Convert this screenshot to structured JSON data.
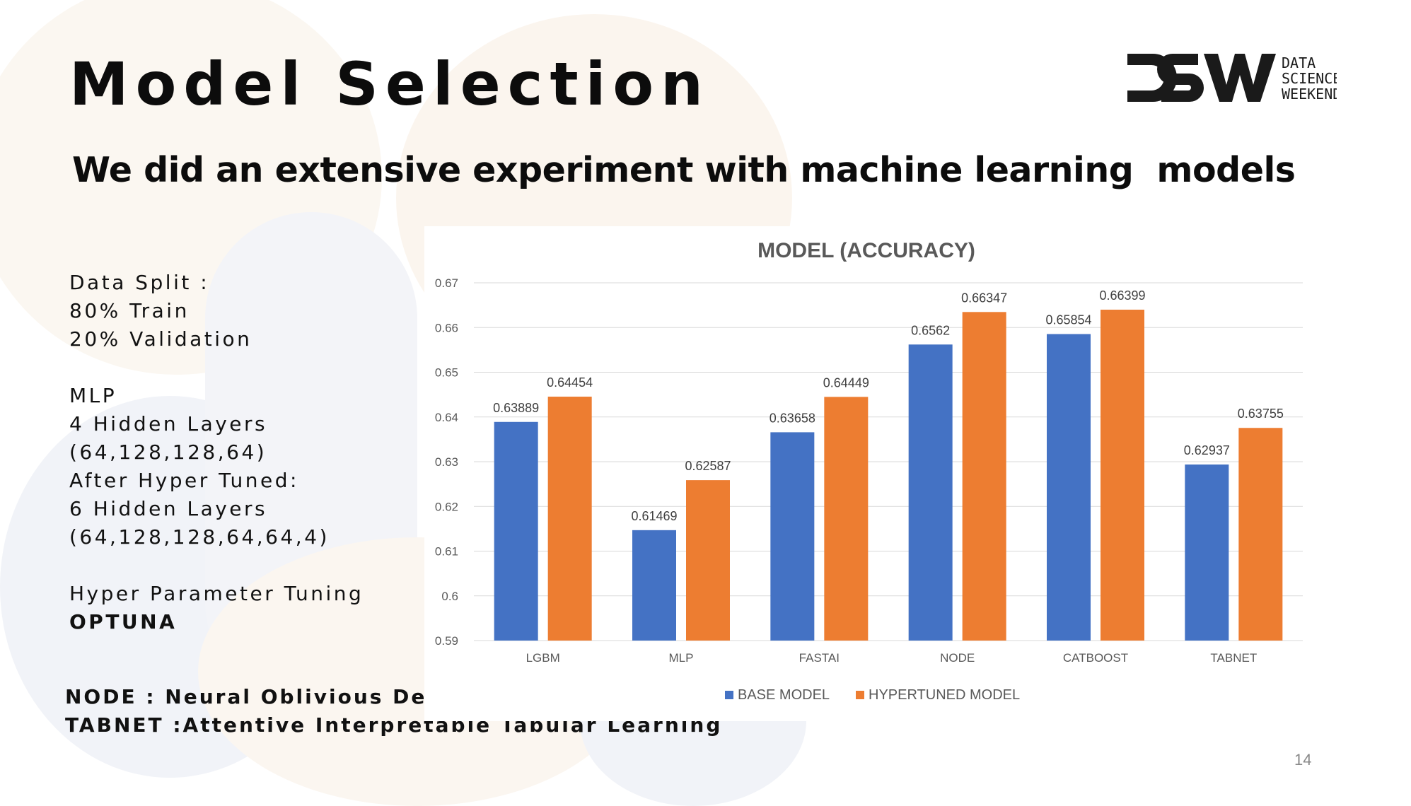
{
  "slide": {
    "title": "Model Selection",
    "subtitle": "We did an extensive experiment with machine learning  models",
    "page_number": "14"
  },
  "logo": {
    "mark": "DSW",
    "lines": [
      "DATA",
      "SCIENCE",
      "WEEKEND"
    ]
  },
  "notes": {
    "data_split_label": "Data Split :",
    "train": "80% Train",
    "validation": "20% Validation",
    "mlp_label": "MLP",
    "mlp_layers": "4  Hidden Layers",
    "mlp_shape": "(64,128,128,64)",
    "after_tuned": "After Hyper Tuned:",
    "tuned_layers": "6  Hidden Layers",
    "tuned_shape": "(64,128,128,64,64,4)",
    "hpt_label": "Hyper  Parameter Tuning",
    "hpt_tool": "OPTUNA"
  },
  "footnotes": {
    "node": "NODE : Neural  Oblivious  Decision Ensembles",
    "tabnet": "TABNET :Attentive  Interpretable  Tabular Learning"
  },
  "colors": {
    "base": "#4472c4",
    "hypertuned": "#ed7d31",
    "grid": "#d9d9d9",
    "axis_text": "#595959"
  },
  "chart_data": {
    "type": "bar",
    "title": "MODEL (ACCURACY)",
    "categories": [
      "LGBM",
      "MLP",
      "FASTAI",
      "NODE",
      "CATBOOST",
      "TABNET"
    ],
    "series": [
      {
        "name": "BASE MODEL",
        "values": [
          0.63889,
          0.61469,
          0.63658,
          0.6562,
          0.65854,
          0.62937
        ],
        "labels": [
          "0.63889",
          "0.61469",
          "0.63658",
          "0.6562",
          "0.65854",
          "0.62937"
        ]
      },
      {
        "name": "HYPERTUNED MODEL",
        "values": [
          0.64454,
          0.62587,
          0.64449,
          0.66347,
          0.66399,
          0.63755
        ],
        "labels": [
          "0.64454",
          "0.62587",
          "0.64449",
          "0.66347",
          "0.66399",
          "0.63755"
        ]
      }
    ],
    "yticks": [
      "0.59",
      "0.6",
      "0.61",
      "0.62",
      "0.63",
      "0.64",
      "0.65",
      "0.66",
      "0.67"
    ],
    "ylim": [
      0.59,
      0.67
    ],
    "grid": true,
    "legend_position": "bottom"
  }
}
